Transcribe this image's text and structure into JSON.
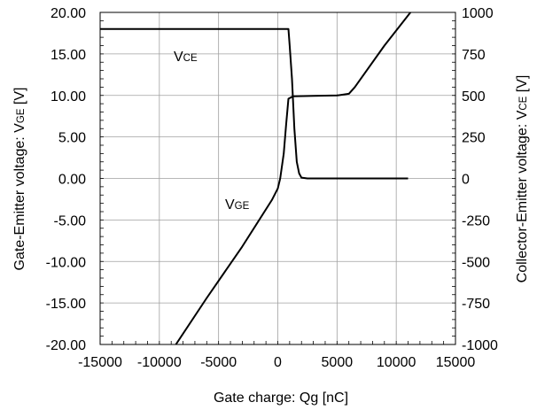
{
  "chart_data": {
    "type": "line",
    "xlabel": "Gate charge: Qg [nC]",
    "ylabel_left": {
      "main": "Gate-Emitter voltage:  V",
      "sub": "GE",
      "unit": " [V]"
    },
    "ylabel_right": {
      "main": "Collector-Emitter voltage: V",
      "sub": "CE",
      "unit": " [V]"
    },
    "xlim": [
      -15000,
      15000
    ],
    "ylim_left": [
      -20,
      20
    ],
    "ylim_right": [
      -1000,
      1000
    ],
    "grid": true,
    "x_ticks": [
      "-15000",
      "-10000",
      "-5000",
      "0",
      "5000",
      "10000",
      "15000"
    ],
    "x_tick_values": [
      -15000,
      -10000,
      -5000,
      0,
      5000,
      10000,
      15000
    ],
    "y_ticks_left": [
      "20.00",
      "15.00",
      "10.00",
      "5.00",
      "0.00",
      "-5.00",
      "-10.00",
      "-15.00",
      "-20.00"
    ],
    "y_tick_values_left": [
      20,
      15,
      10,
      5,
      0,
      -5,
      -10,
      -15,
      -20
    ],
    "y_ticks_right": [
      "1000",
      "750",
      "500",
      "250",
      "0",
      "-250",
      "-500",
      "-750",
      "-1000"
    ],
    "y_tick_values_right": [
      1000,
      750,
      500,
      250,
      0,
      -250,
      -500,
      -750,
      -1000
    ],
    "annotations": {
      "vce": {
        "main": "V",
        "sub": "CE"
      },
      "vge": {
        "main": "V",
        "sub": "GE"
      }
    },
    "series": [
      {
        "name": "VGE",
        "axis": "left",
        "points": [
          [
            -8600,
            -20
          ],
          [
            -6000,
            -14.4
          ],
          [
            -3000,
            -8.2
          ],
          [
            -500,
            -2.6
          ],
          [
            0,
            -1.2
          ],
          [
            200,
            0
          ],
          [
            500,
            3
          ],
          [
            700,
            6.5
          ],
          [
            900,
            9.6
          ],
          [
            1300,
            9.9
          ],
          [
            3000,
            9.95
          ],
          [
            5000,
            10.0
          ],
          [
            6000,
            10.2
          ],
          [
            6500,
            11.0
          ],
          [
            9000,
            16.0
          ],
          [
            11200,
            20.0
          ]
        ]
      },
      {
        "name": "VCE",
        "axis": "right",
        "points": [
          [
            -15000,
            900
          ],
          [
            900,
            900
          ],
          [
            1000,
            800
          ],
          [
            1200,
            600
          ],
          [
            1400,
            300
          ],
          [
            1600,
            100
          ],
          [
            1800,
            30
          ],
          [
            2000,
            5
          ],
          [
            2500,
            0
          ],
          [
            11000,
            0
          ]
        ]
      }
    ]
  }
}
